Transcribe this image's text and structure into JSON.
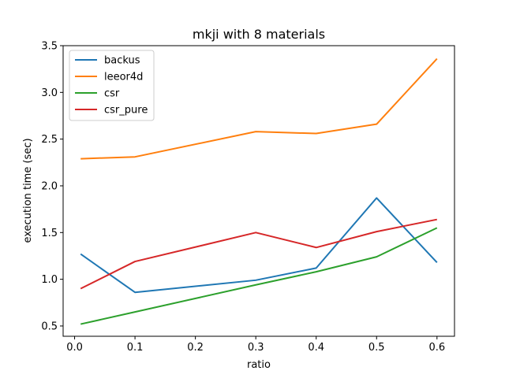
{
  "chart_data": {
    "type": "line",
    "title": "mkji with 8 materials",
    "xlabel": "ratio",
    "ylabel": "execution time (sec)",
    "x": [
      0.01,
      0.1,
      0.3,
      0.4,
      0.5,
      0.6
    ],
    "xlim": [
      -0.019,
      0.629
    ],
    "ylim": [
      0.39,
      3.5
    ],
    "xticks": [
      0.0,
      0.1,
      0.2,
      0.3,
      0.4,
      0.5,
      0.6
    ],
    "xtick_labels": [
      "0.0",
      "0.1",
      "0.2",
      "0.3",
      "0.4",
      "0.5",
      "0.6"
    ],
    "yticks": [
      0.5,
      1.0,
      1.5,
      2.0,
      2.5,
      3.0,
      3.5
    ],
    "ytick_labels": [
      "0.5",
      "1.0",
      "1.5",
      "2.0",
      "2.5",
      "3.0",
      "3.5"
    ],
    "grid": false,
    "legend_position": "top-left",
    "series": [
      {
        "name": "backus",
        "color": "#1f77b4",
        "values": [
          1.27,
          0.86,
          0.99,
          1.12,
          1.87,
          1.18
        ]
      },
      {
        "name": "leeor4d",
        "color": "#ff7f0e",
        "values": [
          2.29,
          2.31,
          2.58,
          2.56,
          2.66,
          3.36
        ]
      },
      {
        "name": "csr",
        "color": "#2ca02c",
        "values": [
          0.52,
          0.65,
          0.94,
          1.08,
          1.24,
          1.55
        ]
      },
      {
        "name": "csr_pure",
        "color": "#d62728",
        "values": [
          0.9,
          1.19,
          1.5,
          1.34,
          1.51,
          1.64
        ]
      }
    ]
  }
}
